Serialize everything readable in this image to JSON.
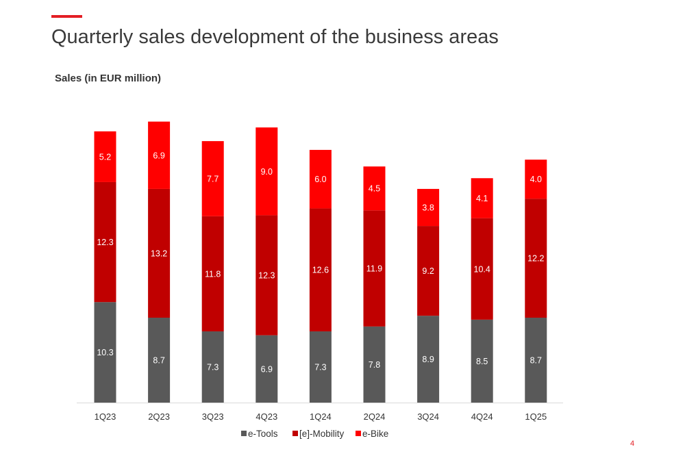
{
  "header": {
    "title": "Quarterly sales development of the business areas",
    "subtitle": "Sales (in EUR million)",
    "accent_color": "#e31e24"
  },
  "page_number": "4",
  "chart_data": {
    "type": "bar",
    "stacked": true,
    "categories": [
      "1Q23",
      "2Q23",
      "3Q23",
      "4Q23",
      "1Q24",
      "2Q24",
      "3Q24",
      "4Q24",
      "1Q25"
    ],
    "series": [
      {
        "name": "e-Tools",
        "color": "#595959",
        "values": [
          10.3,
          8.7,
          7.3,
          6.9,
          7.3,
          7.8,
          8.9,
          8.5,
          8.7
        ]
      },
      {
        "name": "[e]-Mobility",
        "color": "#c00000",
        "values": [
          12.3,
          13.2,
          11.8,
          12.3,
          12.6,
          11.9,
          9.2,
          10.4,
          12.2
        ]
      },
      {
        "name": "e-Bike",
        "color": "#ff0000",
        "values": [
          5.2,
          6.9,
          7.7,
          9.0,
          6.0,
          4.5,
          3.8,
          4.1,
          4.0
        ]
      }
    ],
    "ylabel": "Sales (in EUR million)",
    "legend_position": "bottom",
    "grid": false
  }
}
